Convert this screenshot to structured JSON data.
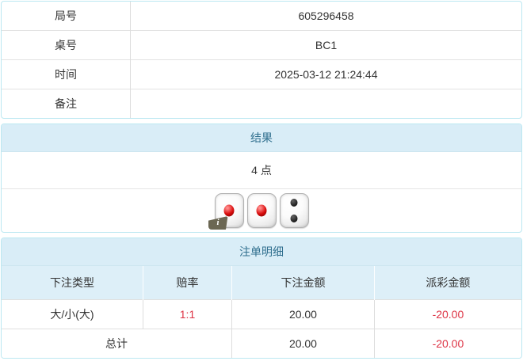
{
  "colors": {
    "panel_border": "#bce8f1",
    "header_bg": "#d9edf7",
    "header_text": "#31708f",
    "text": "#333333",
    "negative_red": "#dd3344"
  },
  "info_table": {
    "rows": [
      {
        "label": "局号",
        "value": "605296458"
      },
      {
        "label": "桌号",
        "value": "BC1"
      },
      {
        "label": "时间",
        "value": "2025-03-12 21:24:44"
      },
      {
        "label": "备注",
        "value": ""
      }
    ]
  },
  "result_panel": {
    "title": "结果",
    "points": "4 点",
    "dice": [
      1,
      1,
      2
    ],
    "info_icon": "i"
  },
  "bets_panel": {
    "title": "注单明细",
    "columns": [
      "下注类型",
      "赔率",
      "下注金额",
      "派彩金额"
    ],
    "rows": [
      {
        "type": "大/小(大)",
        "odds": "1:1",
        "amount": "20.00",
        "payout": "-20.00"
      }
    ],
    "total_label": "总计",
    "total_amount": "20.00",
    "total_payout": "-20.00"
  }
}
